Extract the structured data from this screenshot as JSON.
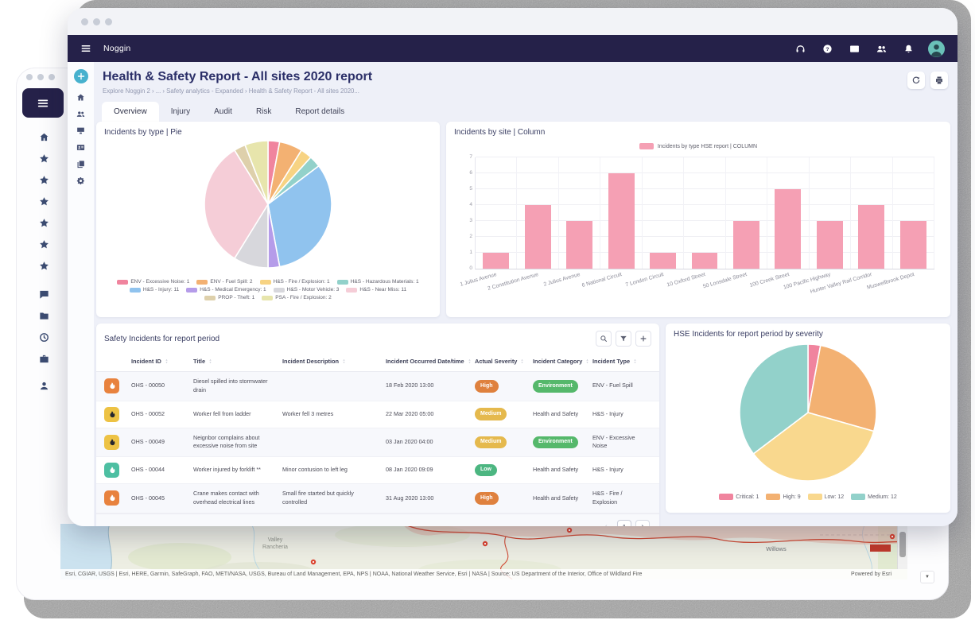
{
  "front_window": {
    "brand": "Noggin",
    "appbar_icons": [
      "headset-icon",
      "help-icon",
      "id-card-icon",
      "people-icon",
      "bell-icon"
    ],
    "rail_icons": [
      "plus-icon",
      "home-icon",
      "people-icon",
      "monitor-icon",
      "id-card-icon",
      "copy-icon",
      "gear-icon"
    ],
    "page": {
      "title": "Health & Safety Report - All sites 2020 report",
      "breadcrumb": "Explore Noggin 2 › ... › Safety analytics - Expanded › Health & Safety Report - All sites 2020...",
      "action_icons": [
        "refresh-icon",
        "print-icon"
      ],
      "tabs": [
        {
          "label": "Overview",
          "active": true
        },
        {
          "label": "Injury",
          "active": false
        },
        {
          "label": "Audit",
          "active": false
        },
        {
          "label": "Risk",
          "active": false
        },
        {
          "label": "Report details",
          "active": false
        }
      ]
    }
  },
  "back_window": {
    "sidebar_icons": [
      "home-icon",
      "star-icon",
      "star-icon",
      "star-icon",
      "star-icon",
      "star-icon",
      "star-icon",
      "chat-icon",
      "folder-icon",
      "clock-icon",
      "briefcase-icon",
      "person-icon"
    ],
    "map": {
      "place_labels": [
        "Valley",
        "Rancheria",
        "Willows"
      ],
      "attribution": "Esri, CGIAR, USGS | Esri, HERE, Garmin, SafeGraph, FAO, METI/NASA, USGS, Bureau of Land Management, EPA, NPS | NOAA, National Weather Service, Esri | NASA | Source: US Department of the Interior, Office of Wildland Fire",
      "powered_by": "Powered by Esri"
    }
  },
  "cards": {
    "pie_by_type": {
      "title": "Incidents by type | Pie"
    },
    "column_by_site": {
      "title": "Incidents by site | Column"
    },
    "incident_table": {
      "title": "Safety Incidents for report period",
      "toolbar_icons": [
        "search-icon",
        "filter-icon",
        "plus-icon"
      ]
    },
    "pie_by_severity": {
      "title": "HSE Incidents for report period by severity"
    }
  },
  "chart_data": [
    {
      "type": "pie",
      "title": "Incidents by type | Pie",
      "legend_position": "bottom",
      "series": [
        {
          "label": "ENV - Excessive Noise",
          "value": 1,
          "color": "#f0849e"
        },
        {
          "label": "ENV - Fuel Spill",
          "value": 2,
          "color": "#f3b172"
        },
        {
          "label": "H&S - Fire / Explosion",
          "value": 1,
          "color": "#f7d383"
        },
        {
          "label": "H&S - Hazardous Materials",
          "value": 1,
          "color": "#92d1ca"
        },
        {
          "label": "H&S - Injury",
          "value": 11,
          "color": "#90c3ee"
        },
        {
          "label": "H&S - Medical Emergency",
          "value": 1,
          "color": "#b59ce9"
        },
        {
          "label": "H&S - Motor Vehicle",
          "value": 3,
          "color": "#d7d7dc"
        },
        {
          "label": "H&S - Near Miss",
          "value": 11,
          "color": "#f5cdd7"
        },
        {
          "label": "PROP - Theft",
          "value": 1,
          "color": "#ded0ab"
        },
        {
          "label": "PSA - Fire / Explosion",
          "value": 2,
          "color": "#e7e5ac"
        }
      ]
    },
    {
      "type": "bar",
      "title": "Incidents by site | Column",
      "legend": "Incidents by type HSE report | COLUMN",
      "legend_position": "top",
      "color": "#f5a0b4",
      "categories": [
        "1 Julius Avenue",
        "2 Constitution Avenue",
        "2 Julius Avenue",
        "6 National Circuit",
        "7 London Circuit",
        "10 Oxford Street",
        "50 Lonsdale Street",
        "100 Creek Street",
        "100 Pacific Highway",
        "Hunter Valley Rail Corridor",
        "Muswellbrook Depot"
      ],
      "values": [
        1,
        4,
        3,
        6,
        1,
        1,
        3,
        5,
        3,
        4,
        3
      ],
      "xlabel": "",
      "ylabel": "",
      "ylim": [
        0,
        7
      ],
      "yticks": [
        0,
        1,
        2,
        3,
        4,
        5,
        6,
        7
      ],
      "grid": true
    },
    {
      "type": "pie",
      "title": "HSE Incidents for report period by severity",
      "legend_position": "bottom",
      "series": [
        {
          "label": "Critical",
          "value": 1,
          "color": "#f0849e"
        },
        {
          "label": "High",
          "value": 9,
          "color": "#f3b172"
        },
        {
          "label": "Low",
          "value": 12,
          "color": "#f9d88e"
        },
        {
          "label": "Medium",
          "value": 12,
          "color": "#92d1ca"
        }
      ]
    }
  ],
  "table": {
    "columns": [
      "Incident ID",
      "Title",
      "Incident Description",
      "Incident Occurred Date/time",
      "Actual Severity",
      "Incident Category",
      "Incident Type"
    ],
    "rows": [
      {
        "icon_bg": "#e8823e",
        "icon_fg": "#ffffff",
        "id": "OHS - 00050",
        "title": "Diesel spilled into stormwater drain",
        "description": "",
        "occurred": "18 Feb 2020 13:00",
        "severity": "High",
        "category": "Environment",
        "category_badge": true,
        "type": "ENV - Fuel Spill"
      },
      {
        "icon_bg": "#edc244",
        "icon_fg": "#26262e",
        "id": "OHS - 00052",
        "title": "Worker fell from ladder",
        "description": "Worker fell 3 metres",
        "occurred": "22 Mar 2020 05:00",
        "severity": "Medium",
        "category": "Health and Safety",
        "category_badge": false,
        "type": "H&S - Injury"
      },
      {
        "icon_bg": "#edc244",
        "icon_fg": "#26262e",
        "id": "OHS - 00049",
        "title": "Neignbor complains about excessive noise from site",
        "description": "",
        "occurred": "03 Jan 2020 04:00",
        "severity": "Medium",
        "category": "Environment",
        "category_badge": true,
        "type": "ENV - Excessive Noise"
      },
      {
        "icon_bg": "#4dbfa2",
        "icon_fg": "#ffffff",
        "id": "OHS - 00044",
        "title": "Worker injured by forklift **",
        "description": "Minor contusion to left leg",
        "occurred": "08 Jan 2020 09:09",
        "severity": "Low",
        "category": "Health and Safety",
        "category_badge": false,
        "type": "H&S - Injury"
      },
      {
        "icon_bg": "#e8823e",
        "icon_fg": "#ffffff",
        "id": "OHS - 00045",
        "title": "Crane makes contact with overhead electrical lines",
        "description": "Small fire started but quickly controlled",
        "occurred": "31 Aug 2020 13:00",
        "severity": "High",
        "category": "Health and Safety",
        "category_badge": false,
        "type": "H&S - Fire / Explosion"
      }
    ],
    "pagination": {
      "prev": "‹",
      "page": "1",
      "next": "›"
    }
  },
  "colors": {
    "brand_navy": "#252149",
    "accent_teal": "#47b1ce",
    "bar_pink": "#f5a0b4",
    "severity": {
      "High": "#df813e",
      "Medium": "#e5b94d",
      "Low": "#4cb681"
    },
    "category_badge": "#55b86b"
  }
}
